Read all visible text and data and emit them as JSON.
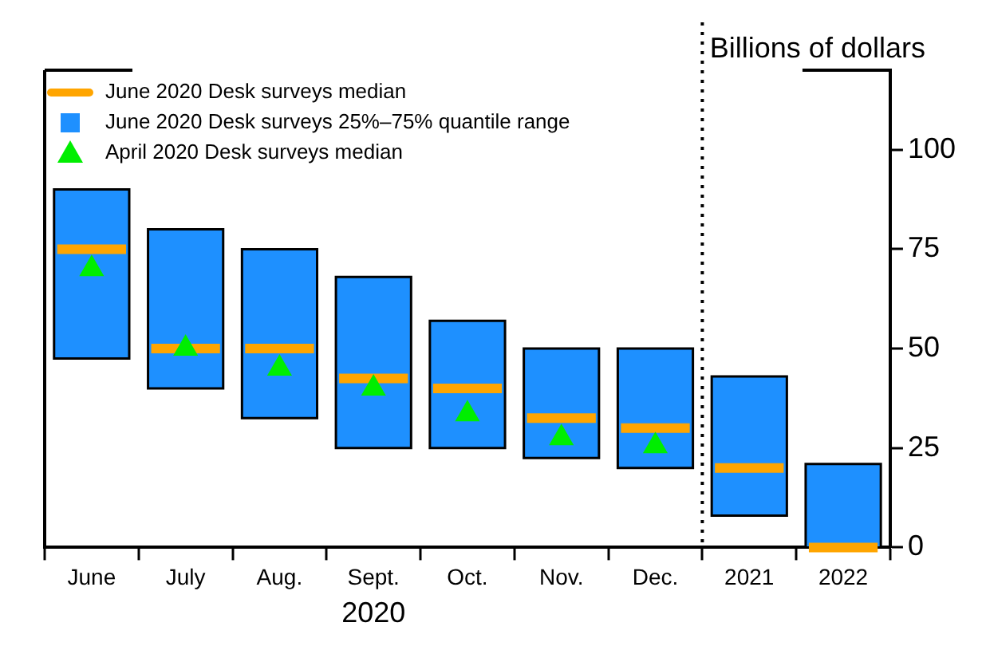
{
  "chart_data": {
    "type": "box",
    "ylabel": "Billions of dollars",
    "categories": [
      "June",
      "July",
      "Aug.",
      "Sept.",
      "Oct.",
      "Nov.",
      "Dec.",
      "2021",
      "2022"
    ],
    "series": [
      {
        "name": "June 2020 Desk surveys 25%–75% quantile range",
        "color": "#1e90ff",
        "boxes": [
          {
            "low": 47.5,
            "q1": 47.5,
            "median": 75,
            "q3": 90,
            "high": 90
          },
          {
            "low": 40,
            "q1": 40,
            "median": 50,
            "q3": 80,
            "high": 80
          },
          {
            "low": 32.5,
            "q1": 32.5,
            "median": 50,
            "q3": 75,
            "high": 75
          },
          {
            "low": 25,
            "q1": 25,
            "median": 42.5,
            "q3": 68,
            "high": 68
          },
          {
            "low": 25,
            "q1": 25,
            "median": 40,
            "q3": 57,
            "high": 57
          },
          {
            "low": 22.5,
            "q1": 22.5,
            "median": 32.5,
            "q3": 50,
            "high": 50
          },
          {
            "low": 20,
            "q1": 20,
            "median": 30,
            "q3": 50,
            "high": 50
          },
          {
            "low": 8,
            "q1": 8,
            "median": 20,
            "q3": 43,
            "high": 43
          },
          {
            "low": 0,
            "q1": 0,
            "median": 0,
            "q3": 21,
            "high": 21
          }
        ]
      },
      {
        "name": "April 2020 Desk surveys median",
        "type": "scatter",
        "marker": "triangle",
        "color": "#00ee00",
        "values": [
          70,
          50,
          45,
          40,
          33.5,
          27.5,
          25.5,
          null,
          null
        ]
      }
    ],
    "ylim": [
      0,
      120
    ],
    "yticks": [
      0,
      25,
      50,
      75,
      100
    ],
    "grid": false,
    "legend": "top left",
    "annotations": [
      "June 2020 Desk surveys median",
      "2020"
    ]
  }
}
